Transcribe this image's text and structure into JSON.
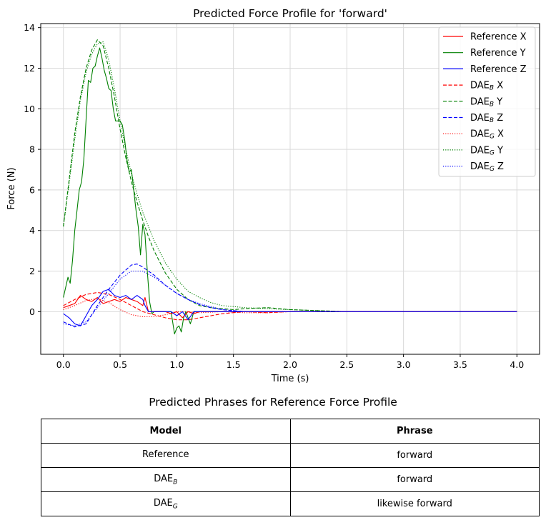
{
  "chart_data": {
    "type": "line",
    "title": "Predicted Force Profile for 'forward'",
    "xlabel": "Time (s)",
    "ylabel": "Force (N)",
    "xlim": [
      -0.2,
      4.2
    ],
    "ylim": [
      -2.1,
      14.2
    ],
    "xticks": [
      "0.0",
      "0.5",
      "1.0",
      "1.5",
      "2.0",
      "2.5",
      "3.0",
      "3.5",
      "4.0"
    ],
    "yticks": [
      "0",
      "2",
      "4",
      "6",
      "8",
      "10",
      "12",
      "14"
    ],
    "grid": true,
    "legend_position": "top-right",
    "series": [
      {
        "name": "Reference X",
        "color": "#ff0000",
        "style": "solid",
        "x": [
          0,
          0.05,
          0.1,
          0.15,
          0.2,
          0.25,
          0.3,
          0.35,
          0.4,
          0.45,
          0.5,
          0.55,
          0.6,
          0.65,
          0.7,
          0.72,
          0.75,
          0.8,
          0.85,
          0.9,
          0.95,
          1.0,
          1.05,
          1.1,
          1.15,
          1.2,
          4.0
        ],
        "y": [
          0.2,
          0.3,
          0.4,
          0.8,
          0.6,
          0.5,
          0.7,
          0.4,
          0.5,
          0.6,
          0.5,
          0.7,
          0.6,
          0.5,
          0.3,
          0.7,
          0.0,
          0.0,
          0.0,
          0.0,
          -0.1,
          0.0,
          -0.3,
          0.0,
          -0.1,
          0.0,
          0.0
        ]
      },
      {
        "name": "Reference Y",
        "color": "#008000",
        "style": "solid",
        "x": [
          0,
          0.02,
          0.04,
          0.06,
          0.08,
          0.1,
          0.12,
          0.14,
          0.16,
          0.18,
          0.2,
          0.22,
          0.24,
          0.26,
          0.28,
          0.3,
          0.32,
          0.34,
          0.36,
          0.38,
          0.4,
          0.42,
          0.44,
          0.46,
          0.48,
          0.5,
          0.52,
          0.54,
          0.56,
          0.58,
          0.6,
          0.62,
          0.64,
          0.66,
          0.68,
          0.7,
          0.72,
          0.74,
          0.76,
          0.78,
          0.8,
          0.85,
          0.9,
          0.95,
          0.98,
          1.0,
          1.02,
          1.04,
          1.06,
          1.08,
          1.1,
          1.12,
          1.15,
          1.2,
          4.0
        ],
        "y": [
          0.7,
          1.2,
          1.7,
          1.4,
          2.5,
          4.0,
          5.0,
          6.0,
          6.4,
          7.5,
          9.5,
          11.4,
          11.3,
          12.0,
          12.1,
          12.6,
          13.0,
          12.5,
          11.9,
          11.5,
          11.0,
          10.9,
          10.0,
          9.4,
          9.4,
          9.4,
          9.2,
          8.5,
          7.5,
          6.9,
          7.0,
          6.0,
          5.0,
          4.2,
          2.8,
          4.3,
          3.8,
          2.0,
          0.5,
          -0.1,
          0.0,
          0.0,
          0.0,
          0.0,
          -1.1,
          -0.8,
          -0.7,
          -1.0,
          -0.3,
          0.0,
          -0.3,
          -0.6,
          0.0,
          0.0,
          0.0
        ]
      },
      {
        "name": "Reference Z",
        "color": "#0000ff",
        "style": "solid",
        "x": [
          0,
          0.05,
          0.1,
          0.15,
          0.2,
          0.25,
          0.3,
          0.35,
          0.4,
          0.45,
          0.5,
          0.55,
          0.6,
          0.65,
          0.7,
          0.72,
          0.75,
          0.8,
          0.85,
          0.9,
          0.95,
          1.0,
          1.05,
          1.1,
          1.15,
          1.2,
          4.0
        ],
        "y": [
          -0.1,
          -0.3,
          -0.6,
          -0.7,
          -0.2,
          0.3,
          0.6,
          1.0,
          1.1,
          0.8,
          0.7,
          0.8,
          0.6,
          0.8,
          0.6,
          0.3,
          0.0,
          0.0,
          0.0,
          0.0,
          0.0,
          -0.2,
          0.0,
          -0.4,
          0.0,
          0.0,
          0.0
        ]
      },
      {
        "name": "DAE_B X",
        "color": "#ff0000",
        "style": "dashed",
        "x": [
          0,
          0.1,
          0.2,
          0.3,
          0.4,
          0.5,
          0.6,
          0.7,
          0.8,
          0.9,
          1.0,
          1.1,
          1.2,
          1.4,
          1.6,
          1.8,
          2.0,
          2.5,
          3.0,
          3.5,
          4.0
        ],
        "y": [
          0.3,
          0.6,
          0.85,
          0.95,
          0.85,
          0.6,
          0.3,
          0.0,
          -0.15,
          -0.3,
          -0.4,
          -0.4,
          -0.3,
          -0.1,
          0.0,
          -0.05,
          0.0,
          0.0,
          0.0,
          0.0,
          0.0
        ]
      },
      {
        "name": "DAE_B Y",
        "color": "#008000",
        "style": "dashed",
        "x": [
          0,
          0.05,
          0.1,
          0.15,
          0.2,
          0.25,
          0.3,
          0.35,
          0.4,
          0.45,
          0.5,
          0.55,
          0.6,
          0.65,
          0.7,
          0.75,
          0.8,
          0.9,
          1.0,
          1.1,
          1.2,
          1.3,
          1.4,
          1.5,
          1.6,
          1.8,
          2.0,
          2.5,
          3.0,
          3.5,
          4.0
        ],
        "y": [
          4.2,
          6.5,
          8.8,
          10.6,
          12.0,
          12.9,
          13.4,
          13.1,
          12.0,
          10.6,
          9.0,
          7.6,
          6.4,
          5.4,
          4.5,
          3.7,
          3.0,
          1.9,
          1.1,
          0.6,
          0.3,
          0.2,
          0.15,
          0.1,
          0.15,
          0.2,
          0.1,
          0.0,
          0.0,
          0.0,
          0.0
        ]
      },
      {
        "name": "DAE_B Z",
        "color": "#0000ff",
        "style": "dashed",
        "x": [
          0,
          0.1,
          0.2,
          0.3,
          0.4,
          0.5,
          0.6,
          0.65,
          0.7,
          0.8,
          0.9,
          1.0,
          1.1,
          1.2,
          1.3,
          1.4,
          1.5,
          1.6,
          1.8,
          2.0,
          2.5,
          3.0,
          3.5,
          4.0
        ],
        "y": [
          -0.5,
          -0.75,
          -0.6,
          0.3,
          1.1,
          1.8,
          2.3,
          2.35,
          2.2,
          1.8,
          1.3,
          0.9,
          0.6,
          0.35,
          0.2,
          0.1,
          0.05,
          0.0,
          0.0,
          0.0,
          0.0,
          0.0,
          0.0,
          0.0
        ]
      },
      {
        "name": "DAE_G X",
        "color": "#ff0000",
        "style": "dotted",
        "x": [
          0,
          0.1,
          0.2,
          0.3,
          0.4,
          0.5,
          0.6,
          0.7,
          0.8,
          0.9,
          1.0,
          1.1,
          1.2,
          1.4,
          1.6,
          1.8,
          2.0,
          2.5,
          3.0,
          3.5,
          4.0
        ],
        "y": [
          0.1,
          0.3,
          0.55,
          0.65,
          0.45,
          0.1,
          -0.15,
          -0.25,
          -0.25,
          -0.15,
          0.0,
          0.0,
          -0.05,
          0.0,
          -0.05,
          -0.05,
          0.0,
          0.0,
          0.0,
          0.0,
          0.0
        ]
      },
      {
        "name": "DAE_G Y",
        "color": "#008000",
        "style": "dotted",
        "x": [
          0,
          0.05,
          0.1,
          0.15,
          0.2,
          0.25,
          0.3,
          0.35,
          0.4,
          0.45,
          0.5,
          0.55,
          0.6,
          0.65,
          0.7,
          0.75,
          0.8,
          0.9,
          1.0,
          1.1,
          1.2,
          1.3,
          1.4,
          1.5,
          1.6,
          1.8,
          2.0,
          2.5,
          3.0,
          3.5,
          4.0
        ],
        "y": [
          4.2,
          6.3,
          8.5,
          10.4,
          11.8,
          12.7,
          13.2,
          13.3,
          12.4,
          11.0,
          9.4,
          8.0,
          6.8,
          5.8,
          4.9,
          4.2,
          3.5,
          2.4,
          1.6,
          1.0,
          0.7,
          0.45,
          0.3,
          0.25,
          0.2,
          0.15,
          0.1,
          0.0,
          0.0,
          0.0,
          0.0
        ]
      },
      {
        "name": "DAE_G Z",
        "color": "#0000ff",
        "style": "dotted",
        "x": [
          0,
          0.1,
          0.2,
          0.3,
          0.4,
          0.5,
          0.6,
          0.7,
          0.8,
          0.9,
          1.0,
          1.1,
          1.2,
          1.3,
          1.4,
          1.5,
          1.6,
          1.8,
          2.0,
          2.5,
          3.0,
          3.5,
          4.0
        ],
        "y": [
          -0.6,
          -0.7,
          -0.5,
          0.2,
          0.9,
          1.6,
          2.0,
          2.0,
          1.7,
          1.3,
          0.9,
          0.6,
          0.4,
          0.25,
          0.1,
          0.05,
          0.0,
          0.0,
          0.0,
          0.0,
          0.0,
          0.0,
          0.0
        ]
      }
    ],
    "legend": [
      {
        "base": "Reference X",
        "sub": ""
      },
      {
        "base": "Reference Y",
        "sub": ""
      },
      {
        "base": "Reference Z",
        "sub": ""
      },
      {
        "base": "DAE",
        "sub": "B",
        "suffix": " X"
      },
      {
        "base": "DAE",
        "sub": "B",
        "suffix": " Y"
      },
      {
        "base": "DAE",
        "sub": "B",
        "suffix": " Z"
      },
      {
        "base": "DAE",
        "sub": "G",
        "suffix": " X"
      },
      {
        "base": "DAE",
        "sub": "G",
        "suffix": " Y"
      },
      {
        "base": "DAE",
        "sub": "G",
        "suffix": " Z"
      }
    ]
  },
  "table": {
    "title": "Predicted Phrases for Reference Force Profile",
    "headers": [
      "Model",
      "Phrase"
    ],
    "rows": [
      {
        "model": "Reference",
        "model_sub": "",
        "phrase": "forward"
      },
      {
        "model": "DAE",
        "model_sub": "B",
        "phrase": "forward"
      },
      {
        "model": "DAE",
        "model_sub": "G",
        "phrase": "likewise  forward"
      }
    ]
  }
}
